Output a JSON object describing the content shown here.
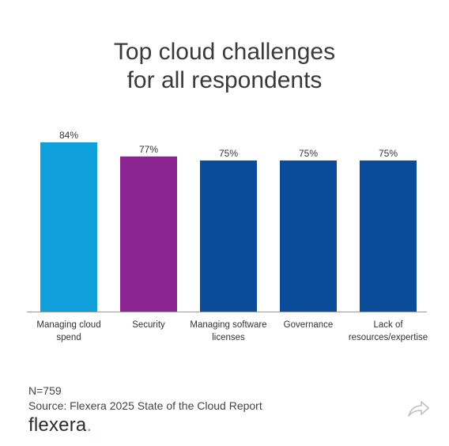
{
  "chart_data": {
    "type": "bar",
    "title": [
      "Top cloud challenges",
      "for all respondents"
    ],
    "categories": [
      [
        "Managing cloud",
        "spend"
      ],
      [
        "Security"
      ],
      [
        "Managing software",
        "licenses"
      ],
      [
        "Governance"
      ],
      [
        "Lack of",
        "resources/expertise"
      ]
    ],
    "values": [
      84,
      77,
      75,
      75,
      75
    ],
    "data_labels": [
      "84%",
      "77%",
      "75%",
      "75%",
      "75%"
    ],
    "colors": [
      "#0fa0dc",
      "#8b2591",
      "#0b4c9a",
      "#0b4c9a",
      "#0b4c9a"
    ],
    "ylim": [
      0,
      100
    ],
    "xlabel": "",
    "ylabel": "",
    "grid": false
  },
  "footer": {
    "sample": "N=759",
    "source": "Source: Flexera 2025 State of the Cloud Report"
  },
  "brand": {
    "name": "flexera",
    "dot": "."
  },
  "icons": {
    "share": "share-arrow-icon"
  }
}
